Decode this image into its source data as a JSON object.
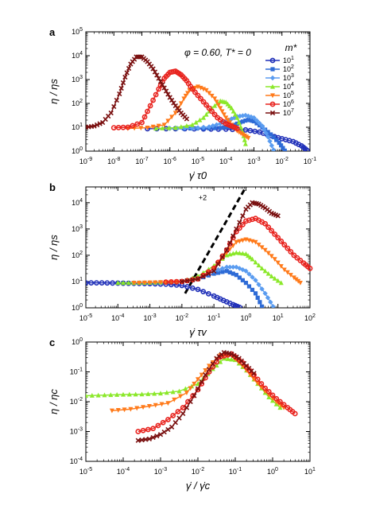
{
  "chart_data": [
    {
      "panel": "a",
      "type": "scatter",
      "xscale": "log",
      "yscale": "log",
      "xlim_exp": [
        -9,
        -1
      ],
      "ylim_exp": [
        0,
        5
      ],
      "xticks": [
        "10^-9",
        "10^-8",
        "10^-7",
        "10^-6",
        "10^-5",
        "10^-4",
        "10^-3",
        "10^-2",
        "10^-1"
      ],
      "yticks": [
        "10^0",
        "10^1",
        "10^2",
        "10^3",
        "10^4",
        "10^5"
      ],
      "xlabel": "γ̇ τ0",
      "ylabel": "η / ηs",
      "annotation": "φ = 0.60, T* = 0",
      "legend_title": "m*",
      "legend_position": "top-right",
      "series": [
        {
          "name": "10^1",
          "color": "#1f2fb8",
          "marker": "circle",
          "x": [
            -6.8,
            -5.8,
            -4.8,
            -4.0,
            -3.3,
            -2.8,
            -2.4,
            -2.0,
            -1.6,
            -1.3,
            -1.1
          ],
          "y": [
            0.94,
            0.94,
            0.93,
            0.92,
            0.89,
            0.8,
            0.65,
            0.52,
            0.4,
            0.22,
            0.03
          ]
        },
        {
          "name": "10^2",
          "color": "#2e6bd6",
          "marker": "square",
          "x": [
            -5.5,
            -4.8,
            -4.2,
            -3.8,
            -3.5,
            -3.2,
            -3.0,
            -2.7,
            -2.4,
            -2.1,
            -1.9
          ],
          "y": [
            0.95,
            0.95,
            0.97,
            1.05,
            1.2,
            1.32,
            1.25,
            1.0,
            0.7,
            0.35,
            0.02
          ]
        },
        {
          "name": "10^3",
          "color": "#5a9cf0",
          "marker": "diamond",
          "x": [
            -6.0,
            -5.2,
            -4.6,
            -4.2,
            -3.9,
            -3.6,
            -3.3,
            -3.0,
            -2.7,
            -2.5,
            -2.3
          ],
          "y": [
            0.95,
            0.96,
            1.02,
            1.15,
            1.3,
            1.45,
            1.5,
            1.4,
            1.05,
            0.6,
            0.05
          ]
        },
        {
          "name": "10^4",
          "color": "#8be82a",
          "marker": "triangle-up",
          "x": [
            -6.5,
            -5.8,
            -5.2,
            -4.8,
            -4.5,
            -4.2,
            -4.0,
            -3.8,
            -3.6,
            -3.4,
            -3.3
          ],
          "y": [
            0.95,
            0.98,
            1.1,
            1.4,
            1.8,
            2.1,
            2.05,
            1.8,
            1.4,
            0.8,
            0.3
          ]
        },
        {
          "name": "10^5",
          "color": "#ff7a1a",
          "marker": "triangle-down",
          "x": [
            -7.5,
            -6.8,
            -6.2,
            -5.8,
            -5.5,
            -5.3,
            -5.0,
            -4.7,
            -4.4,
            -4.2,
            -4.0,
            -3.8,
            -3.6,
            -3.4,
            -3.2
          ],
          "y": [
            0.95,
            0.98,
            1.1,
            1.6,
            2.2,
            2.55,
            2.7,
            2.55,
            2.2,
            1.8,
            1.4,
            1.1,
            0.85,
            0.7,
            0.55
          ]
        },
        {
          "name": "10^6",
          "color": "#e8231e",
          "marker": "circle",
          "x": [
            -8.0,
            -7.5,
            -7.0,
            -6.7,
            -6.4,
            -6.2,
            -6.0,
            -5.8,
            -5.6,
            -5.4,
            -5.2,
            -4.9,
            -4.6,
            -4.3,
            -4.0,
            -3.8,
            -3.6
          ],
          "y": [
            0.98,
            1.0,
            1.2,
            1.9,
            2.6,
            3.05,
            3.3,
            3.35,
            3.2,
            2.95,
            2.6,
            2.2,
            1.8,
            1.4,
            1.15,
            1.05,
            0.95
          ]
        },
        {
          "name": "10^7",
          "color": "#7a1010",
          "marker": "cross",
          "x": [
            -9.0,
            -8.7,
            -8.4,
            -8.1,
            -7.8,
            -7.6,
            -7.4,
            -7.2,
            -7.0,
            -6.8,
            -6.6,
            -6.4,
            -6.2,
            -6.0,
            -5.8,
            -5.6,
            -5.4
          ],
          "y": [
            1.0,
            1.05,
            1.2,
            1.6,
            2.4,
            3.1,
            3.65,
            3.95,
            3.95,
            3.75,
            3.45,
            3.05,
            2.65,
            2.25,
            1.9,
            1.6,
            1.35
          ]
        }
      ]
    },
    {
      "panel": "b",
      "type": "scatter",
      "xscale": "log",
      "yscale": "log",
      "xlim_exp": [
        -5,
        2
      ],
      "ylim_exp": [
        0,
        4.6
      ],
      "xticks": [
        "10^-5",
        "10^-4",
        "10^-3",
        "10^-2",
        "10^-1",
        "10^0",
        "10^1",
        "10^2"
      ],
      "yticks": [
        "10^0",
        "10^1",
        "10^2",
        "10^3",
        "10^4"
      ],
      "xlabel": "γ̇ τv",
      "ylabel": "η / ηs",
      "slope_label": "+2",
      "series": [
        {
          "name": "10^1",
          "color": "#1f2fb8",
          "marker": "circle",
          "x": [
            -5.0,
            -4.5,
            -4.0,
            -3.5,
            -3.0,
            -2.5,
            -2.0,
            -1.5,
            -1.0,
            -0.7,
            -0.4,
            -0.2
          ],
          "y": [
            0.95,
            0.95,
            0.94,
            0.93,
            0.92,
            0.9,
            0.85,
            0.7,
            0.45,
            0.28,
            0.12,
            0.02
          ]
        },
        {
          "name": "10^2",
          "color": "#2e6bd6",
          "marker": "square",
          "x": [
            -3.5,
            -3.0,
            -2.5,
            -2.0,
            -1.5,
            -1.0,
            -0.6,
            -0.3,
            0.0,
            0.3,
            0.5
          ],
          "y": [
            0.95,
            0.95,
            0.96,
            1.0,
            1.1,
            1.3,
            1.4,
            1.25,
            0.95,
            0.55,
            0.05
          ]
        },
        {
          "name": "10^3",
          "color": "#5a9cf0",
          "marker": "diamond",
          "x": [
            -3.5,
            -3.0,
            -2.5,
            -2.0,
            -1.5,
            -1.0,
            -0.6,
            -0.3,
            0.0,
            0.3,
            0.6,
            0.85
          ],
          "y": [
            0.95,
            0.95,
            0.96,
            1.0,
            1.15,
            1.4,
            1.55,
            1.55,
            1.4,
            1.05,
            0.55,
            0.05
          ]
        },
        {
          "name": "10^4",
          "color": "#8be82a",
          "marker": "triangle-up",
          "x": [
            -4.0,
            -3.5,
            -3.0,
            -2.5,
            -2.0,
            -1.5,
            -1.0,
            -0.6,
            -0.3,
            0.0,
            0.2,
            0.5,
            0.8,
            1.1
          ],
          "y": [
            0.95,
            0.95,
            0.96,
            0.98,
            1.0,
            1.2,
            1.6,
            2.0,
            2.1,
            2.05,
            1.85,
            1.5,
            1.2,
            0.95
          ]
        },
        {
          "name": "10^5",
          "color": "#ff7a1a",
          "marker": "triangle-down",
          "x": [
            -3.5,
            -3.0,
            -2.5,
            -2.0,
            -1.5,
            -1.0,
            -0.6,
            -0.3,
            0.0,
            0.3,
            0.6,
            0.9,
            1.2,
            1.5,
            1.7
          ],
          "y": [
            0.95,
            0.96,
            0.98,
            1.0,
            1.1,
            1.5,
            2.1,
            2.5,
            2.6,
            2.5,
            2.2,
            1.85,
            1.45,
            1.15,
            0.95
          ]
        },
        {
          "name": "10^6",
          "color": "#e8231e",
          "marker": "circle",
          "x": [
            -2.5,
            -2.0,
            -1.5,
            -1.0,
            -0.6,
            -0.3,
            0.0,
            0.3,
            0.6,
            0.9,
            1.2,
            1.5,
            1.8,
            2.0
          ],
          "y": [
            0.98,
            1.0,
            1.1,
            1.5,
            2.2,
            2.9,
            3.3,
            3.4,
            3.2,
            2.8,
            2.4,
            2.0,
            1.7,
            1.5
          ]
        },
        {
          "name": "10^7",
          "color": "#7a1010",
          "marker": "cross",
          "x": [
            -2.0,
            -1.5,
            -1.0,
            -0.6,
            -0.3,
            0.0,
            0.2,
            0.4,
            0.6,
            0.8,
            1.0
          ],
          "y": [
            1.0,
            1.1,
            1.4,
            2.2,
            3.0,
            3.75,
            4.0,
            3.95,
            3.8,
            3.6,
            3.5
          ]
        }
      ]
    },
    {
      "panel": "c",
      "type": "scatter",
      "xscale": "log",
      "yscale": "log",
      "xlim_exp": [
        -5,
        1
      ],
      "ylim_exp": [
        -4,
        0
      ],
      "xticks": [
        "10^-5",
        "10^-4",
        "10^-3",
        "10^-2",
        "10^-1",
        "10^0",
        "10^1"
      ],
      "yticks": [
        "10^-4",
        "10^-3",
        "10^-2",
        "10^-1",
        "10^0"
      ],
      "xlabel": "γ̇ / γ̇c",
      "ylabel": "η / ηc",
      "series": [
        {
          "name": "10^4",
          "color": "#8be82a",
          "marker": "triangle-up",
          "x": [
            -5.0,
            -4.5,
            -4.0,
            -3.5,
            -3.0,
            -2.5,
            -2.0,
            -1.6,
            -1.3,
            -1.0,
            -0.7,
            -0.4,
            -0.1,
            0.2
          ],
          "y": [
            -1.8,
            -1.78,
            -1.76,
            -1.75,
            -1.72,
            -1.65,
            -1.4,
            -0.9,
            -0.55,
            -0.6,
            -0.95,
            -1.4,
            -1.85,
            -2.2
          ]
        },
        {
          "name": "10^5",
          "color": "#ff7a1a",
          "marker": "triangle-down",
          "x": [
            -4.3,
            -3.8,
            -3.3,
            -2.8,
            -2.3,
            -2.0,
            -1.7,
            -1.4,
            -1.1,
            -0.8,
            -0.5,
            -0.2,
            0.1,
            0.3
          ],
          "y": [
            -2.3,
            -2.25,
            -2.15,
            -2.05,
            -1.7,
            -1.25,
            -0.8,
            -0.45,
            -0.45,
            -0.8,
            -1.25,
            -1.65,
            -2.0,
            -2.2
          ]
        },
        {
          "name": "10^6",
          "color": "#e8231e",
          "marker": "circle",
          "x": [
            -3.6,
            -3.2,
            -2.8,
            -2.4,
            -2.0,
            -1.7,
            -1.4,
            -1.1,
            -0.8,
            -0.5,
            -0.2,
            0.1,
            0.4,
            0.6
          ],
          "y": [
            -3.0,
            -2.9,
            -2.6,
            -2.2,
            -1.6,
            -1.0,
            -0.5,
            -0.4,
            -0.7,
            -1.1,
            -1.55,
            -1.9,
            -2.2,
            -2.4
          ]
        },
        {
          "name": "10^7",
          "color": "#7a1010",
          "marker": "cross",
          "x": [
            -3.6,
            -3.3,
            -3.0,
            -2.7,
            -2.4,
            -2.1,
            -1.8,
            -1.5,
            -1.3,
            -1.1,
            -0.9,
            -0.7,
            -0.5
          ],
          "y": [
            -3.3,
            -3.25,
            -3.1,
            -2.85,
            -2.4,
            -1.8,
            -1.1,
            -0.55,
            -0.35,
            -0.4,
            -0.55,
            -0.8,
            -1.05
          ]
        }
      ]
    }
  ]
}
